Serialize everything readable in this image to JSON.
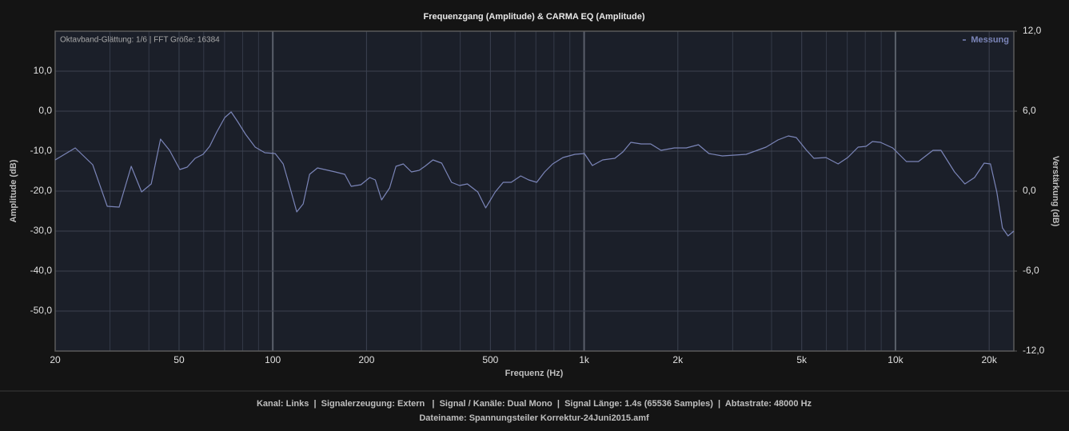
{
  "chart_data": {
    "type": "line",
    "title": "Frequenzgang (Amplitude) & CARMA EQ (Amplitude)",
    "annotation": "Oktavband-Glättung: 1/6 | FFT Größe: 16384",
    "xlabel": "Frequenz (Hz)",
    "ylabel": "Amplitude (dB)",
    "y2label": "Verstärkung (dB)",
    "xscale": "log",
    "grid": true,
    "legend": "top-right",
    "xlim": [
      20,
      24000
    ],
    "xticks": [
      20,
      50,
      100,
      200,
      500,
      {
        "value": 1000,
        "label": "1k"
      },
      {
        "value": 2000,
        "label": "2k"
      },
      {
        "value": 5000,
        "label": "5k"
      },
      {
        "value": 10000,
        "label": "10k"
      },
      {
        "value": 20000,
        "label": "20k"
      }
    ],
    "xminorticks": [
      30,
      40,
      60,
      70,
      80,
      90,
      300,
      400,
      600,
      700,
      800,
      900,
      3000,
      4000,
      6000,
      7000,
      8000,
      9000
    ],
    "ylim": [
      -60,
      20
    ],
    "yticks": [
      {
        "value": 10,
        "label": "10,0"
      },
      {
        "value": 0,
        "label": "0,0"
      },
      {
        "value": -10,
        "label": "-10,0"
      },
      {
        "value": -20,
        "label": "-20,0"
      },
      {
        "value": -30,
        "label": "-30,0"
      },
      {
        "value": -40,
        "label": "-40,0"
      },
      {
        "value": -50,
        "label": "-50,0"
      }
    ],
    "y2lim": [
      -12,
      12
    ],
    "y2ticks": [
      {
        "value": 12,
        "label": "12,0"
      },
      {
        "value": 6,
        "label": "6,0"
      },
      {
        "value": 0,
        "label": "0,0"
      },
      {
        "value": -6,
        "label": "-6,0"
      },
      {
        "value": -12,
        "label": "-12,0"
      }
    ],
    "x": [
      20,
      23.2,
      26.4,
      29.4,
      32.1,
      35.1,
      37.9,
      40.7,
      43.6,
      46.6,
      50.3,
      53.1,
      56.3,
      59.7,
      62.7,
      66.1,
      70.1,
      73.5,
      77.1,
      81.8,
      87.8,
      94.3,
      101.8,
      108,
      114.6,
      119.4,
      125.2,
      131.3,
      139.2,
      158.6,
      170.3,
      178.6,
      191.9,
      204.8,
      213.4,
      223.6,
      237.3,
      248.7,
      262.6,
      278.9,
      295.2,
      308,
      326.9,
      348.8,
      375.1,
      397.8,
      421.7,
      455.3,
      482.9,
      518.3,
      549.7,
      583.2,
      625.8,
      663.8,
      704.2,
      746.9,
      792.4,
      855.3,
      934.2,
      1002,
      1063,
      1147,
      1255,
      1332,
      1413,
      1525,
      1636,
      1766,
      1949,
      2130,
      2329,
      2516,
      2780,
      3315,
      3839,
      4195,
      4527,
      4802,
      5156,
      5470,
      5981,
      6544,
      7026,
      7587,
      8048,
      8435,
      8951,
      9798,
      10843,
      11856,
      13197,
      14001,
      15480,
      16710,
      17950,
      19270,
      20190,
      21160,
      22060,
      22990,
      24000
    ],
    "series": [
      {
        "name": "Messung",
        "color": "#7b85b8",
        "values": [
          -12.2,
          -9.2,
          -13.4,
          -23.8,
          -24,
          -13.8,
          -20.2,
          -18.2,
          -7,
          -9.8,
          -14.6,
          -14,
          -11.8,
          -10.8,
          -8.8,
          -5.2,
          -1.6,
          -0.2,
          -2.6,
          -5.8,
          -9,
          -10.4,
          -10.6,
          -13.2,
          -20.2,
          -25.2,
          -23.2,
          -15.8,
          -14.2,
          -15.2,
          -15.8,
          -18.8,
          -18.4,
          -16.6,
          -17.2,
          -22.2,
          -19.2,
          -13.8,
          -13.2,
          -15.2,
          -14.8,
          -13.8,
          -12.2,
          -13,
          -17.8,
          -18.6,
          -18.2,
          -20.2,
          -24.2,
          -20.2,
          -17.8,
          -17.8,
          -16.2,
          -17.2,
          -17.8,
          -15.2,
          -13.2,
          -11.6,
          -10.8,
          -10.6,
          -13.6,
          -12.2,
          -11.8,
          -10.2,
          -7.8,
          -8.2,
          -8.2,
          -9.8,
          -9.2,
          -9.2,
          -8.4,
          -10.6,
          -11.2,
          -10.8,
          -9,
          -7.2,
          -6.2,
          -6.6,
          -9.6,
          -11.8,
          -11.6,
          -13.2,
          -11.6,
          -9,
          -8.8,
          -7.6,
          -7.8,
          -9.2,
          -12.6,
          -12.6,
          -9.8,
          -9.8,
          -15.2,
          -18.2,
          -16.6,
          -13,
          -13.2,
          -20.2,
          -29.2,
          -31.2,
          -30
        ]
      }
    ],
    "footer": [
      "Kanal: Links  |  Signalerzeugung: Extern   |  Signal / Kanäle: Dual Mono  |  Signal Länge: 1.4s (65536 Samples)  |  Abtastrate: 48000 Hz",
      "Dateiname: Spannungsteiler Korrektur-24Juni2015.amf"
    ]
  }
}
